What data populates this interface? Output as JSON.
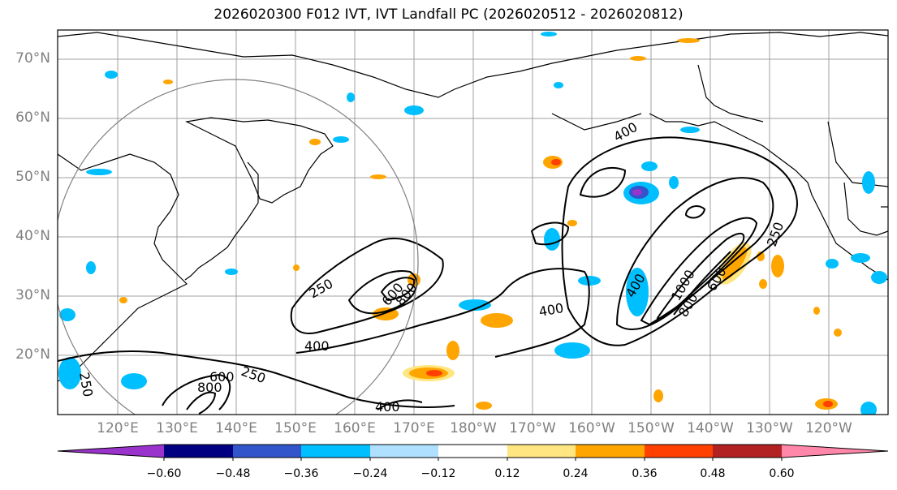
{
  "title": "2026020300 F012 IVT, IVT Landfall PC (2026020512 - 2026020812)",
  "lat_labels": [
    "70°N",
    "60°N",
    "50°N",
    "40°N",
    "30°N",
    "20°N"
  ],
  "lon_labels": [
    "120°E",
    "130°E",
    "140°E",
    "150°E",
    "160°E",
    "170°E",
    "180°W",
    "170°W",
    "160°W",
    "150°W",
    "140°W",
    "130°W",
    "120°W"
  ],
  "contour_labels": [
    "250",
    "400",
    "600",
    "800",
    "250",
    "400",
    "600",
    "800",
    "250",
    "400",
    "400",
    "600",
    "800",
    "1000",
    "250",
    "400"
  ],
  "colorbar": {
    "colors": [
      "#9933cc",
      "#000080",
      "#3355cc",
      "#00bfff",
      "#b0e0ff",
      "#ffffff",
      "#ffe680",
      "#ffa500",
      "#ff4000",
      "#b22222",
      "#ff88aa"
    ],
    "tick_labels": [
      "−0.60",
      "−0.48",
      "−0.36",
      "−0.24",
      "−0.12",
      "0.12",
      "0.24",
      "0.36",
      "0.48",
      "0.60"
    ]
  }
}
